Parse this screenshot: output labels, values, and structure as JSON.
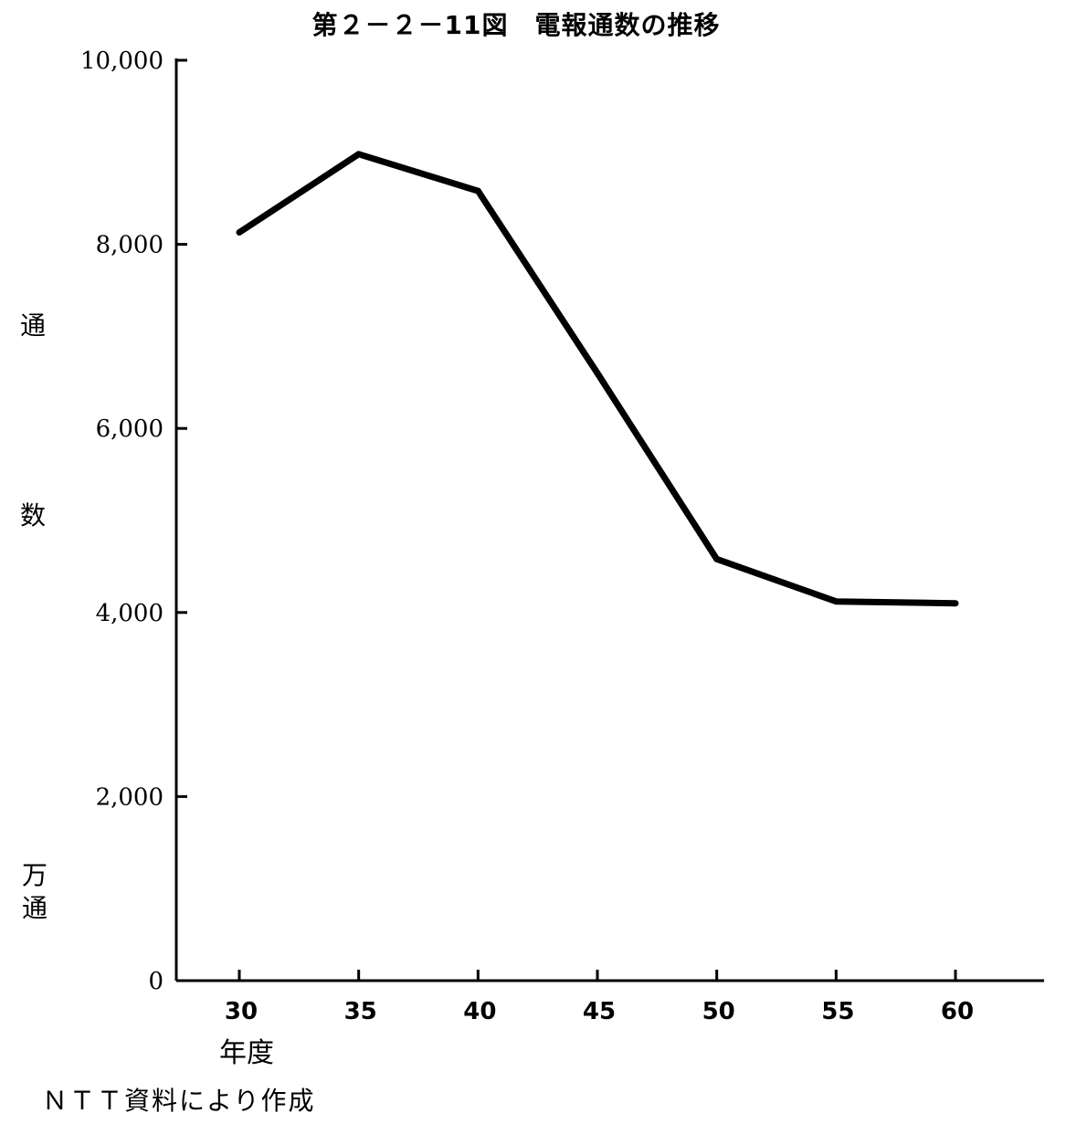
{
  "chart_data": {
    "type": "line",
    "title": "第２－２－11図　電報通数の推移",
    "xlabel": "年度",
    "ylabel": "通数",
    "yunit": "万通",
    "source": "ＮＴＴ資料により作成",
    "x": [
      30,
      35,
      40,
      45,
      50,
      55,
      60
    ],
    "series": [
      {
        "values": [
          8130,
          8980,
          8580,
          6600,
          4580,
          4120,
          4100
        ]
      }
    ],
    "y_ticks": [
      0,
      2000,
      4000,
      6000,
      8000,
      10000
    ],
    "y_tick_labels": [
      "0",
      "2,000",
      "4,000",
      "6,000",
      "8,000",
      "10,000"
    ],
    "x_tick_labels": [
      "30",
      "35",
      "40",
      "45",
      "50",
      "55",
      "60"
    ],
    "ylim": [
      0,
      10000
    ],
    "xlim": [
      27.5,
      63.5
    ],
    "grid": false,
    "line_color": "#000000"
  }
}
